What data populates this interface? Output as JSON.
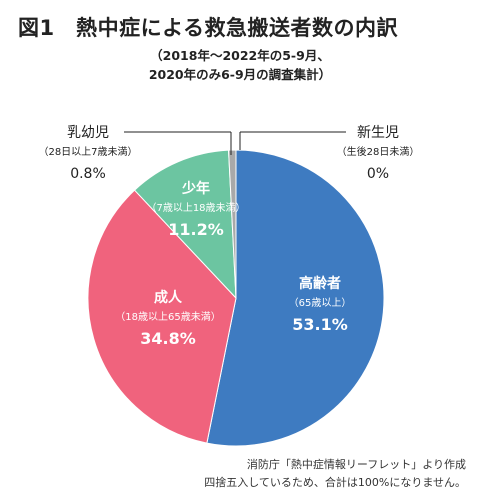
{
  "title": "図1　熱中症による救急搬送者数の内訳",
  "subtitle_lines": [
    "（2018年〜2022年の5-9月、",
    "2020年のみ6-9月の調査集計）"
  ],
  "chart_data": {
    "type": "pie",
    "title": "図1　熱中症による救急搬送者数の内訳",
    "slices": [
      {
        "label": "高齢者",
        "sublabel": "（65歳以上）",
        "value": 53.1,
        "value_text": "53.1%",
        "color": "#3e7bc1"
      },
      {
        "label": "成人",
        "sublabel": "（18歳以上65歳未満）",
        "value": 34.8,
        "value_text": "34.8%",
        "color": "#f0637d"
      },
      {
        "label": "少年",
        "sublabel": "（7歳以上18歳未満）",
        "value": 11.2,
        "value_text": "11.2%",
        "color": "#6cc5a1"
      },
      {
        "label": "乳幼児",
        "sublabel": "（28日以上7歳未満）",
        "value": 0.8,
        "value_text": "0.8%",
        "color": "#a9a9a9"
      },
      {
        "label": "新生児",
        "sublabel": "（生後28日未満）",
        "value": 0.0,
        "value_text": "0%",
        "color": "#a9a9a9"
      }
    ],
    "start_angle_deg": 0,
    "direction": "clockwise"
  },
  "source_lines": [
    "消防庁「熱中症情報リーフレット」より作成",
    "四捨五入しているため、合計は100%になりません。"
  ]
}
